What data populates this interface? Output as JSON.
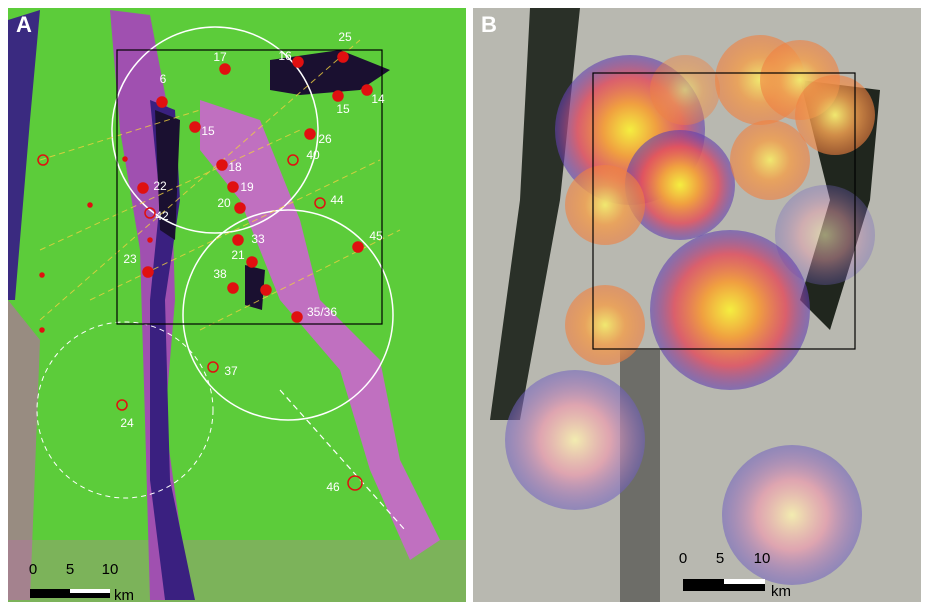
{
  "panels": [
    {
      "label": "A",
      "sites": [
        "25",
        "16",
        "17",
        "6",
        "15",
        "14",
        "15",
        "26",
        "40",
        "18",
        "19",
        "22",
        "44",
        "20",
        "42",
        "33",
        "45",
        "21",
        "23",
        "38",
        "35/36",
        "37",
        "24",
        "46"
      ],
      "scale": {
        "ticks": [
          "0",
          "5",
          "10"
        ],
        "unit": "km"
      }
    },
    {
      "label": "B",
      "scale": {
        "ticks": [
          "0",
          "5",
          "10"
        ],
        "unit": "km"
      }
    }
  ]
}
